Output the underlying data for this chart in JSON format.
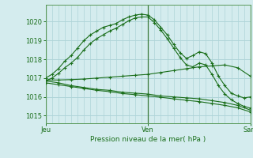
{
  "background_color": "#d4ecee",
  "grid_color": "#aed4d8",
  "line_color": "#1a6e1a",
  "title": "Pression niveau de la mer( hPa )",
  "xtick_labels": [
    "Jeu",
    "Ven",
    "Sam"
  ],
  "xtick_positions": [
    0,
    16,
    32
  ],
  "ylim": [
    1014.6,
    1020.9
  ],
  "yticks": [
    1015,
    1016,
    1017,
    1018,
    1019,
    1020
  ],
  "xlim": [
    0,
    32
  ],
  "series": [
    {
      "x": [
        0,
        1,
        2,
        3,
        4,
        5,
        6,
        7,
        8,
        9,
        10,
        11,
        12,
        13,
        14,
        15,
        16,
        17,
        18,
        19,
        20,
        21,
        22,
        23,
        24,
        25,
        26,
        27,
        28,
        29,
        30,
        31,
        32
      ],
      "y": [
        1017.0,
        1017.2,
        1017.5,
        1017.9,
        1018.2,
        1018.6,
        1019.0,
        1019.3,
        1019.5,
        1019.7,
        1019.8,
        1019.9,
        1020.1,
        1020.25,
        1020.35,
        1020.4,
        1020.35,
        1020.1,
        1019.7,
        1019.3,
        1018.8,
        1018.35,
        1018.05,
        1018.2,
        1018.4,
        1018.3,
        1017.8,
        1017.1,
        1016.6,
        1016.2,
        1016.05,
        1015.95,
        1016.0
      ],
      "style": "-",
      "marker": "+"
    },
    {
      "x": [
        0,
        1,
        2,
        3,
        4,
        5,
        6,
        7,
        8,
        9,
        10,
        11,
        12,
        13,
        14,
        15,
        16,
        17,
        18,
        19,
        20,
        21,
        22,
        23,
        24,
        25,
        26,
        27,
        28,
        29,
        30,
        31,
        32
      ],
      "y": [
        1016.85,
        1017.0,
        1017.25,
        1017.55,
        1017.8,
        1018.1,
        1018.5,
        1018.85,
        1019.1,
        1019.3,
        1019.5,
        1019.65,
        1019.85,
        1020.05,
        1020.2,
        1020.25,
        1020.25,
        1019.95,
        1019.55,
        1019.1,
        1018.6,
        1018.1,
        1017.7,
        1017.6,
        1017.8,
        1017.7,
        1017.2,
        1016.6,
        1016.15,
        1015.85,
        1015.65,
        1015.5,
        1015.4
      ],
      "style": "-",
      "marker": "+"
    },
    {
      "x": [
        0,
        2,
        4,
        6,
        8,
        10,
        12,
        14,
        16,
        18,
        20,
        22,
        24,
        26,
        28,
        30,
        32
      ],
      "y": [
        1016.85,
        1016.75,
        1016.6,
        1016.5,
        1016.4,
        1016.35,
        1016.25,
        1016.2,
        1016.15,
        1016.05,
        1016.0,
        1015.95,
        1015.9,
        1015.8,
        1015.7,
        1015.55,
        1015.3
      ],
      "style": "-",
      "marker": "+"
    },
    {
      "x": [
        0,
        2,
        4,
        6,
        8,
        10,
        12,
        14,
        16,
        18,
        20,
        22,
        24,
        26,
        28,
        30,
        32
      ],
      "y": [
        1016.75,
        1016.65,
        1016.55,
        1016.45,
        1016.35,
        1016.28,
        1016.18,
        1016.12,
        1016.05,
        1015.98,
        1015.9,
        1015.82,
        1015.75,
        1015.65,
        1015.55,
        1015.42,
        1015.2
      ],
      "style": "-",
      "marker": "+"
    },
    {
      "x": [
        0,
        2,
        4,
        6,
        8,
        10,
        12,
        14,
        16,
        18,
        20,
        22,
        24,
        26,
        28,
        30,
        32
      ],
      "y": [
        1016.9,
        1016.9,
        1016.92,
        1016.95,
        1017.0,
        1017.05,
        1017.1,
        1017.15,
        1017.2,
        1017.3,
        1017.4,
        1017.5,
        1017.6,
        1017.65,
        1017.7,
        1017.55,
        1017.1
      ],
      "style": "-",
      "marker": "+"
    }
  ]
}
